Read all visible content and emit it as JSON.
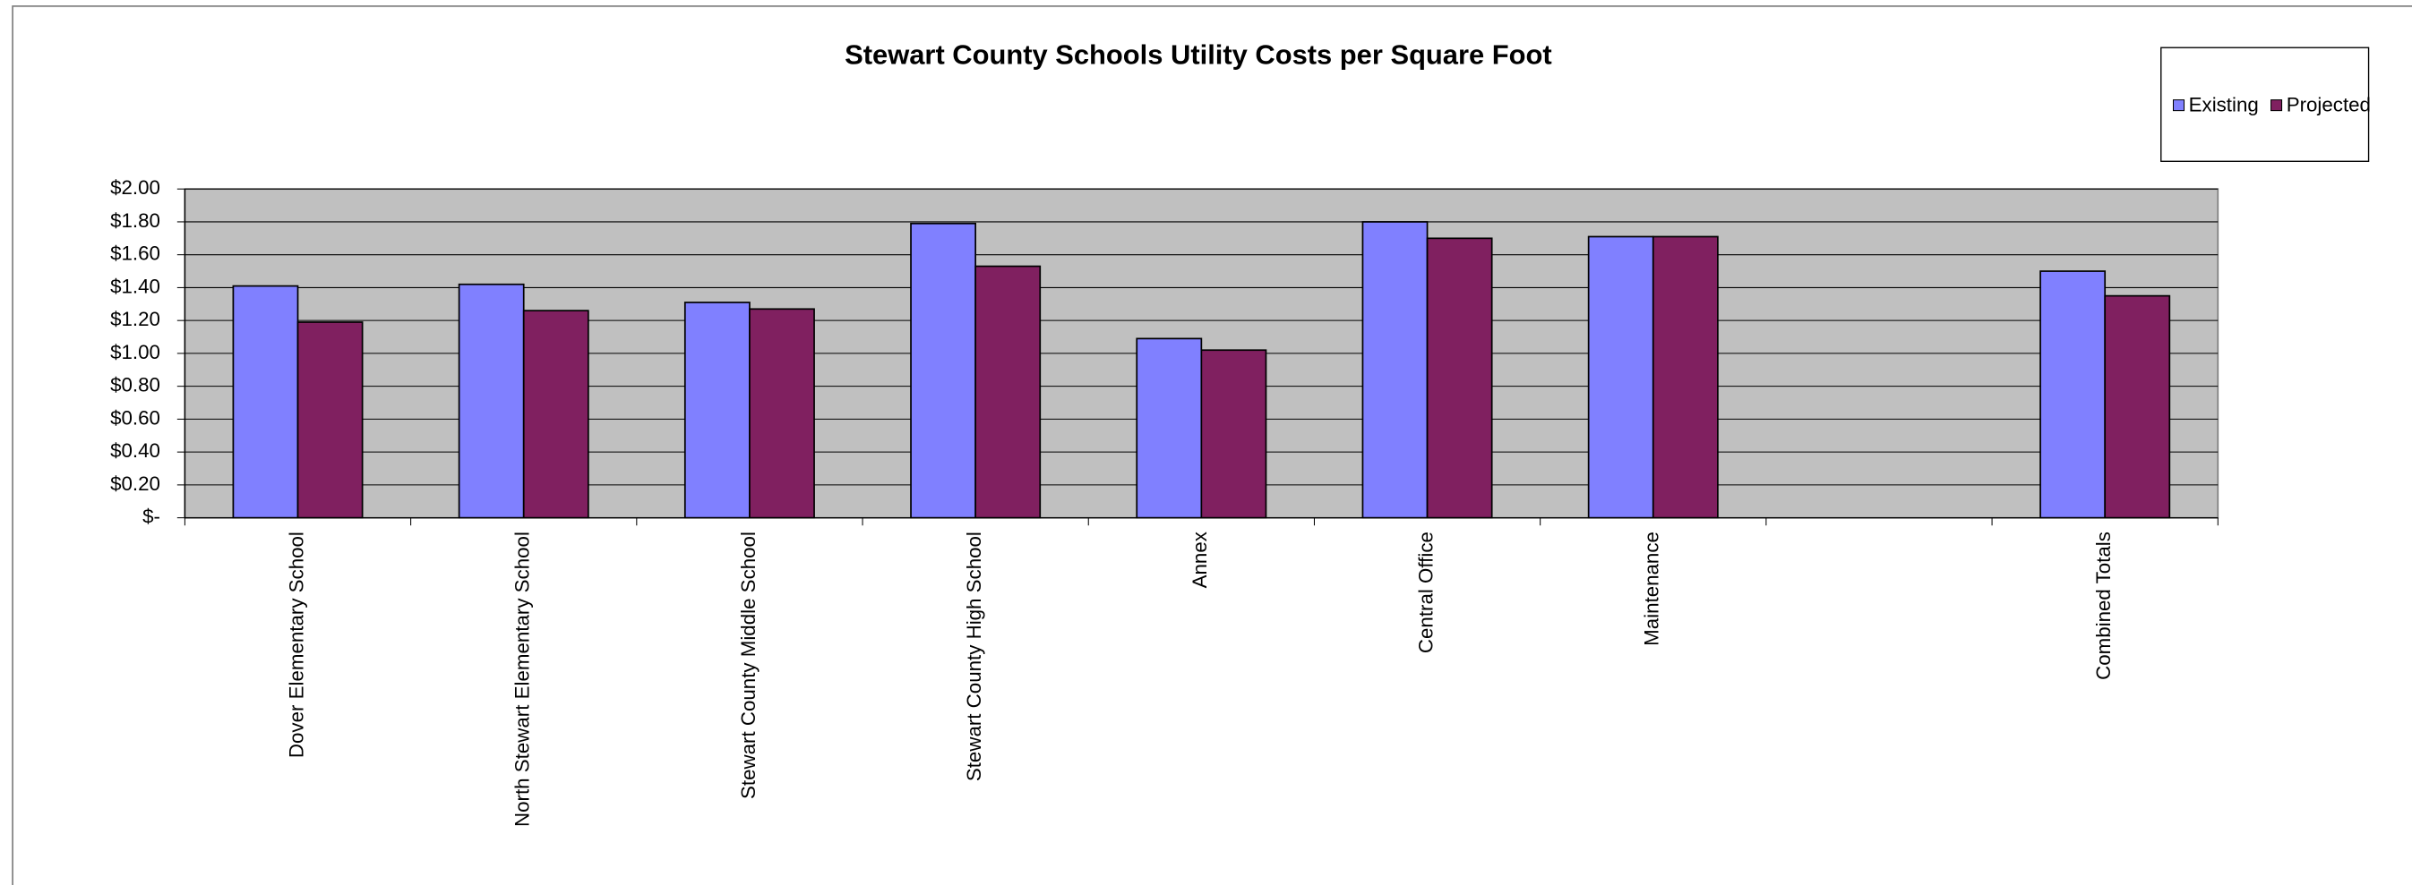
{
  "chart_data": {
    "type": "bar",
    "title": "Stewart County Schools Utility Costs per Square Foot",
    "categories": [
      "Dover Elementary School",
      "North Stewart Elementary School",
      "Stewart County Middle School",
      "Stewart County High School",
      "Annex",
      "Central Office",
      "Maintenance",
      null,
      "Combined Totals"
    ],
    "series": [
      {
        "name": "Existing",
        "color": "#8080ff",
        "values": [
          1.41,
          1.42,
          1.31,
          1.79,
          1.09,
          1.8,
          1.71,
          null,
          1.5
        ]
      },
      {
        "name": "Projected",
        "color": "#802060",
        "values": [
          1.19,
          1.26,
          1.27,
          1.53,
          1.02,
          1.7,
          1.71,
          null,
          1.35
        ]
      }
    ],
    "ylim": [
      0,
      2
    ],
    "yticks": [
      {
        "value": 0,
        "label": "$-"
      },
      {
        "value": 0.2,
        "label": "$0.20"
      },
      {
        "value": 0.4,
        "label": "$0.40"
      },
      {
        "value": 0.6,
        "label": "$0.60"
      },
      {
        "value": 0.8,
        "label": "$0.80"
      },
      {
        "value": 1,
        "label": "$1.00"
      },
      {
        "value": 1.2,
        "label": "$1.20"
      },
      {
        "value": 1.4,
        "label": "$1.40"
      },
      {
        "value": 1.6,
        "label": "$1.60"
      },
      {
        "value": 1.8,
        "label": "$1.80"
      },
      {
        "value": 2,
        "label": "$2.00"
      }
    ],
    "grid": true,
    "legend": "top-right"
  }
}
